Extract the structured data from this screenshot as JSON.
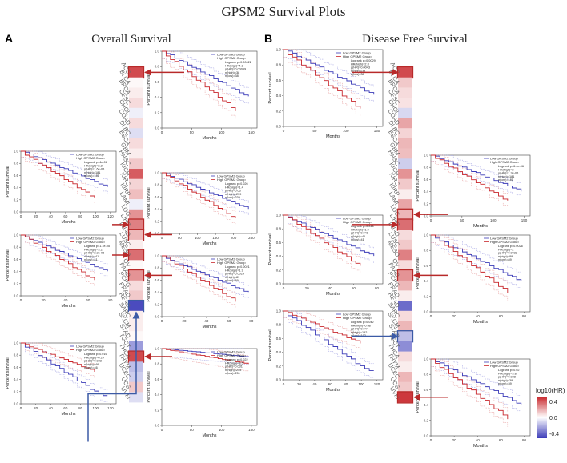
{
  "figure": {
    "title": "GPSM2  Survival Plots",
    "panel_a": {
      "letter": "A",
      "title": "Overall Survival"
    },
    "panel_b": {
      "letter": "B",
      "title": "Disease Free Survival"
    }
  },
  "cancers": [
    "ACC",
    "BLCA",
    "BRCA",
    "CESC",
    "CHOL",
    "COAD",
    "DLBC",
    "ESCA",
    "GBM",
    "HNSC",
    "KICH",
    "KIRC",
    "KIRP",
    "LAML",
    "LGG",
    "LIHC",
    "LUAD",
    "LUSC",
    "MESO",
    "OV",
    "PAAD",
    "PCPG",
    "PRAD",
    "READ",
    "SARC",
    "SKCM",
    "STAD",
    "TGCT",
    "THCA",
    "THYM",
    "UCEC",
    "UCS",
    "UVM"
  ],
  "heatmap": {
    "os_log10hr": [
      0.5,
      0.02,
      0.05,
      0.1,
      -0.05,
      0.1,
      -0.1,
      0.1,
      0.05,
      0.15,
      0.45,
      0.12,
      0.18,
      -0.05,
      0.3,
      0.35,
      0.2,
      0.05,
      0.4,
      0.02,
      0.3,
      0.1,
      0.15,
      -0.55,
      0.05,
      0.05,
      0.02,
      -0.3,
      0.5,
      -0.2,
      -0.15,
      0.15,
      -0.1
    ],
    "dfs_log10hr": [
      0.5,
      0.15,
      0.1,
      0.08,
      -0.12,
      0.25,
      0.12,
      0.2,
      0.18,
      -0.15,
      0.3,
      0.15,
      0.05,
      0.25,
      0.2,
      0.4,
      0.1,
      0.15,
      0.35,
      0.1,
      0.3,
      0.2,
      0.05,
      -0.45,
      0.1,
      0.2,
      -0.2,
      -0.35,
      0.1,
      0.05,
      0.2,
      0.15,
      0.55
    ],
    "highlight_os": [
      "ACC",
      "LIHC",
      "LUAD",
      "MESO",
      "PAAD",
      "READ",
      "THCA"
    ],
    "highlight_dfs": [
      "ACC",
      "LGG",
      "LIHC",
      "PAAD",
      "STAD",
      "UVM"
    ]
  },
  "legend": {
    "title": "log10(HR)",
    "ticks": [
      "0.4",
      "0.0",
      "-0.4"
    ]
  },
  "colors": {
    "low": "#3b3bb8",
    "high": "#c8262b",
    "ci_low": "#9a9ae0",
    "ci_high": "#e59a9a",
    "arrow": "#b82a2a",
    "arrow_blue": "#3b5aa6"
  },
  "km": {
    "legend_low": "Low GPSM2 Group",
    "legend_high": "High GPSM2 Group",
    "ylabel": "Percent survival",
    "xlabel": "Months",
    "yticks": [
      "0.0",
      "0.2",
      "0.4",
      "0.6",
      "0.8",
      "1.0"
    ],
    "plots": [
      {
        "id": "os-acc",
        "xticks": [
          "0",
          "50",
          "100",
          "150"
        ],
        "stats": [
          "Logrank p=0.00022",
          "HR(high)=4.8",
          "p(HR)=0.00059",
          "n(high)=38",
          "n(low)=38"
        ]
      },
      {
        "id": "os-lihc",
        "xticks": [
          "0",
          "20",
          "40",
          "60",
          "80",
          "100",
          "120"
        ],
        "stats": [
          "Logrank p=4e-06",
          "HR(high)=2.2",
          "p(HR)=1.6e-05",
          "n(high)=181",
          "n(low)=181"
        ]
      },
      {
        "id": "os-luad",
        "xticks": [
          "0",
          "50",
          "100",
          "150",
          "200",
          "250"
        ],
        "stats": [
          "Logrank p=0.026",
          "HR(high)=1.4",
          "p(HR)=0.03",
          "n(high)=239",
          "n(low)=239"
        ]
      },
      {
        "id": "os-meso",
        "xticks": [
          "0",
          "20",
          "40",
          "60",
          "80"
        ],
        "stats": [
          "Logrank p=1.1e-05",
          "HR(high)=3.2",
          "p(HR)=2.3e-05",
          "n(high)=41",
          "n(low)=41"
        ]
      },
      {
        "id": "os-paad",
        "xticks": [
          "0",
          "20",
          "40",
          "60",
          "80"
        ],
        "stats": [
          "Logrank p=0.0021",
          "HR(high)=1.9",
          "p(HR)=0.0029",
          "n(high)=89",
          "n(low)=89"
        ]
      },
      {
        "id": "os-read",
        "xticks": [
          "0",
          "20",
          "40",
          "60",
          "80",
          "100",
          "120"
        ],
        "stats": [
          "Logrank p=0.016",
          "HR(high)=0.29",
          "p(HR)=0.023",
          "n(high)=46",
          "n(low)=46"
        ]
      },
      {
        "id": "os-thca",
        "xticks": [
          "0",
          "50",
          "100",
          "150"
        ],
        "stats": [
          "Logrank p=0.022",
          "HR(high)=3.5",
          "p(HR)=0.031",
          "n(high)=255",
          "n(low)=251"
        ]
      },
      {
        "id": "dfs-acc",
        "xticks": [
          "0",
          "50",
          "100",
          "150"
        ],
        "stats": [
          "Logrank p=0.0029",
          "HR(high)=2.8",
          "p(HR)=0.0043",
          "n(high)=38",
          "n(low)=38"
        ]
      },
      {
        "id": "dfs-lgg",
        "xticks": [
          "0",
          "50",
          "100",
          "150"
        ],
        "stats": [
          "Logrank p=6.4e-06",
          "HR(high)=2",
          "p(HR)=1.3e-05",
          "n(high)=181",
          "n(low)=181"
        ]
      },
      {
        "id": "dfs-lihc",
        "xticks": [
          "0",
          "20",
          "40",
          "60",
          "80"
        ],
        "stats": [
          "Logrank p=0.046",
          "HR(high)=1.9",
          "p(HR)=0.048",
          "n(high)=41",
          "n(low)=41"
        ]
      },
      {
        "id": "dfs-paad",
        "xticks": [
          "0",
          "20",
          "40",
          "60",
          "80"
        ],
        "stats": [
          "Logrank p=0.0026",
          "HR(high)=2",
          "p(HR)=0.0032",
          "n(high)=89",
          "n(low)=89"
        ]
      },
      {
        "id": "dfs-stad",
        "xticks": [
          "0",
          "20",
          "40",
          "60",
          "80",
          "100",
          "120"
        ],
        "stats": [
          "Logrank p=0.042",
          "HR(high)=0.68",
          "p(HR)=0.044",
          "n(high)=192",
          "n(low)=192"
        ]
      },
      {
        "id": "dfs-uvm",
        "xticks": [
          "0",
          "20",
          "40",
          "60",
          "80"
        ],
        "stats": [
          "Logrank p=0.02",
          "HR(high)=3.8",
          "p(HR)=0.028",
          "n(high)=39",
          "n(low)=39"
        ]
      }
    ]
  }
}
